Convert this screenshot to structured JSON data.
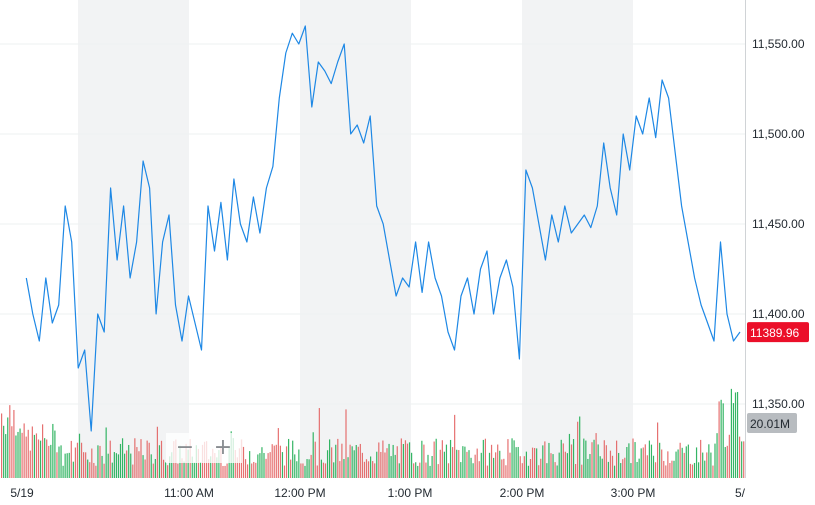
{
  "chart_data": {
    "type": "line",
    "title": "",
    "xlabel": "",
    "ylabel": "",
    "x_ticks": [
      "5/19",
      "11:00 AM",
      "12:00 PM",
      "1:00 PM",
      "2:00 PM",
      "3:00 PM",
      "5/"
    ],
    "y_ticks": [
      "11,550.00",
      "11,500.00",
      "11,450.00",
      "11,400.00",
      "11,350.00"
    ],
    "ylim": [
      11335,
      11578
    ],
    "time_range": [
      "09:30",
      "16:00"
    ],
    "series": [
      {
        "values": [
          [
            "09:30",
            11420
          ],
          [
            "09:33",
            11400
          ],
          [
            "09:36",
            11385
          ],
          [
            "09:39",
            11420
          ],
          [
            "09:42",
            11395
          ],
          [
            "09:45",
            11405
          ],
          [
            "09:48",
            11460
          ],
          [
            "09:51",
            11440
          ],
          [
            "09:54",
            11370
          ],
          [
            "09:57",
            11380
          ],
          [
            "10:00",
            11335
          ],
          [
            "10:03",
            11400
          ],
          [
            "10:06",
            11390
          ],
          [
            "10:09",
            11470
          ],
          [
            "10:12",
            11430
          ],
          [
            "10:15",
            11460
          ],
          [
            "10:18",
            11420
          ],
          [
            "10:21",
            11440
          ],
          [
            "10:24",
            11485
          ],
          [
            "10:27",
            11470
          ],
          [
            "10:30",
            11400
          ],
          [
            "10:33",
            11440
          ],
          [
            "10:36",
            11455
          ],
          [
            "10:39",
            11405
          ],
          [
            "10:42",
            11385
          ],
          [
            "10:45",
            11410
          ],
          [
            "10:48",
            11395
          ],
          [
            "10:51",
            11380
          ],
          [
            "10:54",
            11460
          ],
          [
            "10:57",
            11435
          ],
          [
            "11:00",
            11462
          ],
          [
            "11:03",
            11430
          ],
          [
            "11:06",
            11475
          ],
          [
            "11:09",
            11450
          ],
          [
            "11:12",
            11440
          ],
          [
            "11:15",
            11465
          ],
          [
            "11:18",
            11445
          ],
          [
            "11:21",
            11470
          ],
          [
            "11:24",
            11482
          ],
          [
            "11:27",
            11520
          ],
          [
            "11:30",
            11545
          ],
          [
            "11:33",
            11556
          ],
          [
            "11:36",
            11550
          ],
          [
            "11:39",
            11560
          ],
          [
            "11:42",
            11515
          ],
          [
            "11:45",
            11540
          ],
          [
            "11:48",
            11535
          ],
          [
            "11:51",
            11528
          ],
          [
            "11:54",
            11540
          ],
          [
            "11:57",
            11550
          ],
          [
            "12:00",
            11500
          ],
          [
            "12:03",
            11505
          ],
          [
            "12:06",
            11495
          ],
          [
            "12:09",
            11510
          ],
          [
            "12:12",
            11460
          ],
          [
            "12:15",
            11450
          ],
          [
            "12:18",
            11430
          ],
          [
            "12:21",
            11410
          ],
          [
            "12:24",
            11420
          ],
          [
            "12:27",
            11415
          ],
          [
            "12:30",
            11440
          ],
          [
            "12:33",
            11412
          ],
          [
            "12:36",
            11440
          ],
          [
            "12:39",
            11420
          ],
          [
            "12:42",
            11410
          ],
          [
            "12:45",
            11390
          ],
          [
            "12:48",
            11380
          ],
          [
            "12:51",
            11410
          ],
          [
            "12:54",
            11420
          ],
          [
            "12:57",
            11400
          ],
          [
            "13:00",
            11425
          ],
          [
            "13:03",
            11435
          ],
          [
            "13:06",
            11400
          ],
          [
            "13:09",
            11420
          ],
          [
            "13:12",
            11430
          ],
          [
            "13:15",
            11415
          ],
          [
            "13:18",
            11375
          ],
          [
            "13:21",
            11480
          ],
          [
            "13:24",
            11470
          ],
          [
            "13:27",
            11450
          ],
          [
            "13:30",
            11430
          ],
          [
            "13:33",
            11455
          ],
          [
            "13:36",
            11440
          ],
          [
            "13:39",
            11460
          ],
          [
            "13:42",
            11445
          ],
          [
            "13:45",
            11450
          ],
          [
            "13:48",
            11455
          ],
          [
            "13:51",
            11448
          ],
          [
            "13:54",
            11460
          ],
          [
            "13:57",
            11495
          ],
          [
            "14:00",
            11470
          ],
          [
            "14:03",
            11455
          ],
          [
            "14:06",
            11500
          ],
          [
            "14:09",
            11480
          ],
          [
            "14:12",
            11510
          ],
          [
            "14:15",
            11500
          ],
          [
            "14:18",
            11520
          ],
          [
            "14:21",
            11498
          ],
          [
            "14:24",
            11530
          ],
          [
            "14:27",
            11520
          ],
          [
            "14:30",
            11490
          ],
          [
            "14:33",
            11460
          ],
          [
            "14:36",
            11440
          ],
          [
            "14:39",
            11420
          ],
          [
            "14:42",
            11405
          ],
          [
            "14:45",
            11395
          ],
          [
            "14:48",
            11385
          ],
          [
            "14:51",
            11440
          ],
          [
            "14:54",
            11400
          ],
          [
            "14:57",
            11385
          ],
          [
            "15:00",
            11390
          ]
        ]
      }
    ],
    "last_price": "11389.96",
    "volume_label": "20.01M",
    "colors": {
      "line": "#1e88e5",
      "price_tag": "#eb0f29",
      "volume_tag": "#b8bcc0",
      "volume_up": "#12a84a",
      "volume_down": "#e25858",
      "band": "#f2f3f4"
    },
    "grid": true,
    "legend": "none"
  },
  "zoom": {
    "minus": "−",
    "plus": "+"
  }
}
